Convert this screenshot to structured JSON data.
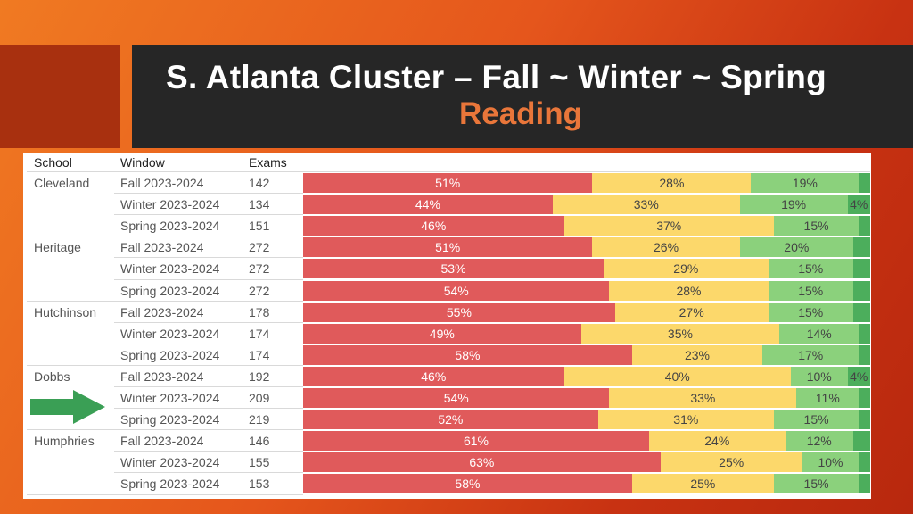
{
  "title": {
    "line1": "S. Atlanta Cluster – Fall ~ Winter ~ Spring",
    "line2": "Reading"
  },
  "table": {
    "headers": {
      "school": "School",
      "window": "Window",
      "exams": "Exams"
    }
  },
  "colors": {
    "level1": "#e05a5b",
    "level2": "#fcd86b",
    "level3": "#8bd17c",
    "level4": "#4cae5c",
    "arrow": "#3a9f55",
    "title_accent": "#e9763a"
  },
  "chart_data": {
    "type": "bar",
    "stacked": true,
    "orientation": "horizontal",
    "xlim": [
      0,
      100
    ],
    "groups": [
      {
        "school": "Cleveland",
        "rows": [
          {
            "window": "Fall 2023-2024",
            "exams": "142",
            "segments": [
              51,
              28,
              19,
              2
            ],
            "labels": [
              "51%",
              "28%",
              "19%",
              ""
            ]
          },
          {
            "window": "Winter 2023-2024",
            "exams": "134",
            "segments": [
              44,
              33,
              19,
              4
            ],
            "labels": [
              "44%",
              "33%",
              "19%",
              "4%"
            ]
          },
          {
            "window": "Spring 2023-2024",
            "exams": "151",
            "segments": [
              46,
              37,
              15,
              2
            ],
            "labels": [
              "46%",
              "37%",
              "15%",
              ""
            ]
          }
        ]
      },
      {
        "school": "Heritage",
        "rows": [
          {
            "window": "Fall 2023-2024",
            "exams": "272",
            "segments": [
              51,
              26,
              20,
              3
            ],
            "labels": [
              "51%",
              "26%",
              "20%",
              ""
            ]
          },
          {
            "window": "Winter 2023-2024",
            "exams": "272",
            "segments": [
              53,
              29,
              15,
              3
            ],
            "labels": [
              "53%",
              "29%",
              "15%",
              ""
            ]
          },
          {
            "window": "Spring 2023-2024",
            "exams": "272",
            "segments": [
              54,
              28,
              15,
              3
            ],
            "labels": [
              "54%",
              "28%",
              "15%",
              ""
            ]
          }
        ]
      },
      {
        "school": "Hutchinson",
        "rows": [
          {
            "window": "Fall 2023-2024",
            "exams": "178",
            "segments": [
              55,
              27,
              15,
              3
            ],
            "labels": [
              "55%",
              "27%",
              "15%",
              ""
            ]
          },
          {
            "window": "Winter 2023-2024",
            "exams": "174",
            "segments": [
              49,
              35,
              14,
              2
            ],
            "labels": [
              "49%",
              "35%",
              "14%",
              ""
            ]
          },
          {
            "window": "Spring 2023-2024",
            "exams": "174",
            "segments": [
              58,
              23,
              17,
              2
            ],
            "labels": [
              "58%",
              "23%",
              "17%",
              ""
            ]
          }
        ]
      },
      {
        "school": "Dobbs",
        "rows": [
          {
            "window": "Fall 2023-2024",
            "exams": "192",
            "segments": [
              46,
              40,
              10,
              4
            ],
            "labels": [
              "46%",
              "40%",
              "10%",
              "4%"
            ]
          },
          {
            "window": "Winter 2023-2024",
            "exams": "209",
            "segments": [
              54,
              33,
              11,
              2
            ],
            "labels": [
              "54%",
              "33%",
              "11%",
              ""
            ]
          },
          {
            "window": "Spring 2023-2024",
            "exams": "219",
            "segments": [
              52,
              31,
              15,
              2
            ],
            "labels": [
              "52%",
              "31%",
              "15%",
              ""
            ]
          }
        ]
      },
      {
        "school": "Humphries",
        "rows": [
          {
            "window": "Fall 2023-2024",
            "exams": "146",
            "segments": [
              61,
              24,
              12,
              3
            ],
            "labels": [
              "61%",
              "24%",
              "12%",
              ""
            ]
          },
          {
            "window": "Winter 2023-2024",
            "exams": "155",
            "segments": [
              63,
              25,
              10,
              2
            ],
            "labels": [
              "63%",
              "25%",
              "10%",
              ""
            ]
          },
          {
            "window": "Spring 2023-2024",
            "exams": "153",
            "segments": [
              58,
              25,
              15,
              2
            ],
            "labels": [
              "58%",
              "25%",
              "15%",
              ""
            ]
          }
        ]
      }
    ],
    "highlight": {
      "school": "Dobbs",
      "window": "Winter 2023-2024",
      "marker": "arrow"
    }
  }
}
